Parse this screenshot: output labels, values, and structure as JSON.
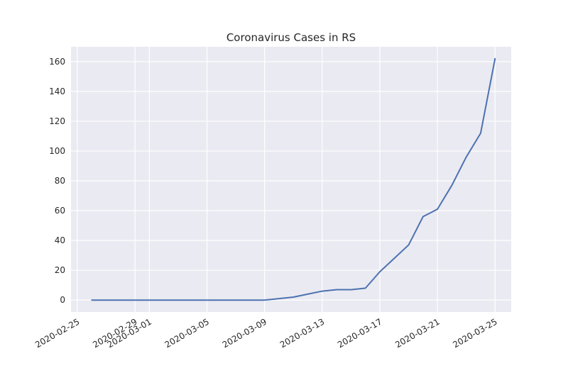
{
  "chart_data": {
    "type": "line",
    "title": "Coronavirus Cases in RS",
    "xlabel": "",
    "ylabel": "",
    "xlim": [
      "2020-02-25",
      "2020-03-26"
    ],
    "ylim": [
      -8,
      170
    ],
    "x_ticks": [
      "2020-02-25",
      "2020-02-29",
      "2020-03-01",
      "2020-03-05",
      "2020-03-09",
      "2020-03-13",
      "2020-03-17",
      "2020-03-21",
      "2020-03-25"
    ],
    "y_ticks": [
      0,
      20,
      40,
      60,
      80,
      100,
      120,
      140,
      160
    ],
    "grid": true,
    "colors": {
      "background": "#eaeaf2",
      "grid": "#ffffff",
      "line": "#4c72b0",
      "text": "#262626"
    },
    "series": [
      {
        "x": [
          "2020-02-26",
          "2020-03-09",
          "2020-03-10",
          "2020-03-11",
          "2020-03-12",
          "2020-03-13",
          "2020-03-14",
          "2020-03-15",
          "2020-03-16",
          "2020-03-17",
          "2020-03-18",
          "2020-03-19",
          "2020-03-20",
          "2020-03-21",
          "2020-03-22",
          "2020-03-23",
          "2020-03-24",
          "2020-03-25"
        ],
        "values": [
          0,
          0,
          1,
          2,
          4,
          6,
          7,
          7,
          8,
          19,
          28,
          37,
          56,
          61,
          77,
          96,
          112,
          162
        ]
      }
    ]
  }
}
